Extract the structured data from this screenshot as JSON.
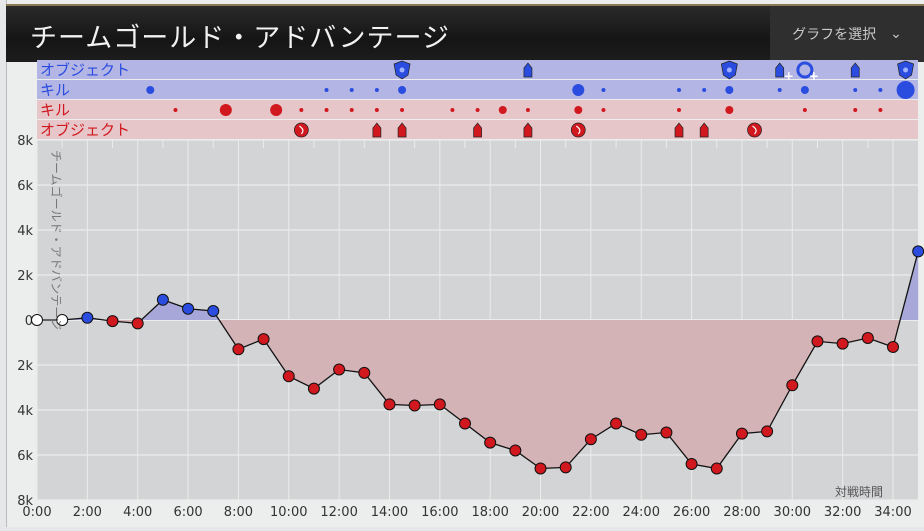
{
  "header": {
    "title": "チームゴールド・アドバンテージ",
    "select_label": "グラフを選択",
    "select_icon": "chevron-down-icon"
  },
  "colors": {
    "blue": "#2a4de0",
    "red": "#d0181e",
    "blue_row": "#b3b5e4",
    "red_row": "#e6c6c9",
    "blue_fill": "#a7a8d9",
    "red_fill": "#d4b3b6",
    "plot_bg": "#d3d4d6"
  },
  "event_rows": [
    {
      "label": "オブジェクト",
      "team": "blue",
      "kind": "objective",
      "events": [
        {
          "t": 14.5,
          "icon": "baron"
        },
        {
          "t": 19.5,
          "icon": "tower"
        },
        {
          "t": 27.5,
          "icon": "inhibitor"
        },
        {
          "t": 29.5,
          "icon": "tower-plus"
        },
        {
          "t": 30.5,
          "icon": "inhibitor-respawn-plus"
        },
        {
          "t": 32.5,
          "icon": "tower"
        },
        {
          "t": 34.5,
          "icon": "nexus"
        }
      ]
    },
    {
      "label": "キル",
      "team": "blue",
      "kind": "kill",
      "events": [
        {
          "t": 4.5,
          "size": 2
        },
        {
          "t": 11.5,
          "size": 1
        },
        {
          "t": 12.5,
          "size": 1
        },
        {
          "t": 13.5,
          "size": 1
        },
        {
          "t": 14.5,
          "size": 2
        },
        {
          "t": 21.5,
          "size": 3
        },
        {
          "t": 22.5,
          "size": 1
        },
        {
          "t": 25.5,
          "size": 1
        },
        {
          "t": 26.5,
          "size": 1
        },
        {
          "t": 27.5,
          "size": 2
        },
        {
          "t": 29.5,
          "size": 1
        },
        {
          "t": 30.5,
          "size": 2
        },
        {
          "t": 32.5,
          "size": 1
        },
        {
          "t": 33.5,
          "size": 1
        },
        {
          "t": 34.5,
          "size": 4
        }
      ]
    },
    {
      "label": "キル",
      "team": "red",
      "kind": "kill",
      "events": [
        {
          "t": 5.5,
          "size": 1
        },
        {
          "t": 7.5,
          "size": 3
        },
        {
          "t": 9.5,
          "size": 3
        },
        {
          "t": 10.5,
          "size": 1
        },
        {
          "t": 11.5,
          "size": 1
        },
        {
          "t": 12.5,
          "size": 1
        },
        {
          "t": 13.5,
          "size": 1
        },
        {
          "t": 14.5,
          "size": 1
        },
        {
          "t": 16.5,
          "size": 1
        },
        {
          "t": 17.5,
          "size": 1
        },
        {
          "t": 18.5,
          "size": 2
        },
        {
          "t": 19.5,
          "size": 1
        },
        {
          "t": 21.5,
          "size": 2
        },
        {
          "t": 22.5,
          "size": 1
        },
        {
          "t": 25.5,
          "size": 1
        },
        {
          "t": 27.5,
          "size": 2
        },
        {
          "t": 30.5,
          "size": 1
        },
        {
          "t": 32.5,
          "size": 1
        },
        {
          "t": 33.5,
          "size": 1
        }
      ]
    },
    {
      "label": "オブジェクト",
      "team": "red",
      "kind": "objective",
      "events": [
        {
          "t": 10.5,
          "icon": "dragon"
        },
        {
          "t": 13.5,
          "icon": "tower"
        },
        {
          "t": 14.5,
          "icon": "tower"
        },
        {
          "t": 17.5,
          "icon": "tower"
        },
        {
          "t": 19.5,
          "icon": "tower"
        },
        {
          "t": 21.5,
          "icon": "dragon"
        },
        {
          "t": 25.5,
          "icon": "tower"
        },
        {
          "t": 26.5,
          "icon": "tower"
        },
        {
          "t": 28.5,
          "icon": "dragon"
        }
      ]
    }
  ],
  "chart_data": {
    "type": "area",
    "ylabel": "チームゴールド・アドバンテージ",
    "xlabel": "対戦時間",
    "ylim": [
      -8000,
      8000
    ],
    "xlim": [
      0,
      35
    ],
    "y_ticks": [
      "8k",
      "6k",
      "4k",
      "2k",
      "0",
      "2k",
      "4k",
      "6k",
      "8k"
    ],
    "y_tick_values": [
      8000,
      6000,
      4000,
      2000,
      0,
      -2000,
      -4000,
      -6000,
      -8000
    ],
    "x_ticks": [
      "0:00",
      "2:00",
      "4:00",
      "6:00",
      "8:00",
      "10:00",
      "12:00",
      "14:00",
      "16:00",
      "18:00",
      "20:00",
      "22:00",
      "24:00",
      "26:00",
      "28:00",
      "30:00",
      "32:00",
      "34:00"
    ],
    "grid": true,
    "x_minutes": [
      0,
      1,
      2,
      3,
      4,
      5,
      6,
      7,
      8,
      9,
      10,
      11,
      12,
      13,
      14,
      15,
      16,
      17,
      18,
      19,
      20,
      21,
      22,
      23,
      24,
      25,
      26,
      27,
      28,
      29,
      30,
      31,
      32,
      33,
      34,
      35
    ],
    "values": [
      0,
      0,
      100,
      -50,
      -150,
      900,
      500,
      400,
      -1300,
      -850,
      -2500,
      -3050,
      -2200,
      -2350,
      -3750,
      -3800,
      -3750,
      -4600,
      -5450,
      -5800,
      -6600,
      -6550,
      -5300,
      -4600,
      -5100,
      -5000,
      -6400,
      -6600,
      -5050,
      -4950,
      -2900,
      -950,
      -1050,
      -800,
      -1200,
      3050
    ]
  }
}
